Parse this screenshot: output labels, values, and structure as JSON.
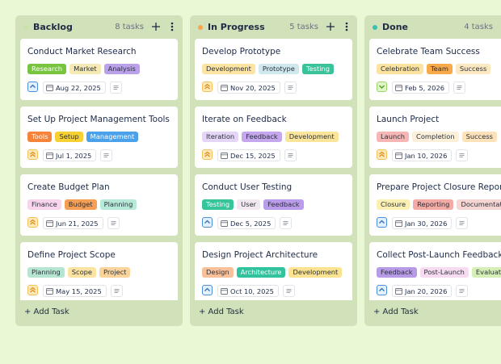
{
  "columns": [
    {
      "title": "Backlog",
      "count": "8 tasks",
      "dot": "#c9e3a8",
      "cards": [
        {
          "title": "Conduct Market Research",
          "tags": [
            {
              "label": "Research",
              "color": "#77c43e"
            },
            {
              "label": "Market",
              "color": "#f6eab4"
            },
            {
              "label": "Analysis",
              "color": "#bba0ea"
            }
          ],
          "date": "Aug 22, 2025"
        },
        {
          "title": "Set Up Project Management Tools",
          "tags": [
            {
              "label": "Tools",
              "color": "#f5843a"
            },
            {
              "label": "Setup",
              "color": "#f7d034"
            },
            {
              "label": "Management",
              "color": "#4ba2ea"
            }
          ],
          "date": "Jul 1, 2025"
        },
        {
          "title": "Create Budget Plan",
          "tags": [
            {
              "label": "Finance",
              "color": "#f8d5ec"
            },
            {
              "label": "Budget",
              "color": "#f59f55"
            },
            {
              "label": "Planning",
              "color": "#b6ead7"
            }
          ],
          "date": "Jun 21, 2025"
        },
        {
          "title": "Define Project Scope",
          "tags": [
            {
              "label": "Planning",
              "color": "#b6e6d2"
            },
            {
              "label": "Scope",
              "color": "#fbe3a2"
            },
            {
              "label": "Project",
              "color": "#fbd49b"
            }
          ],
          "date": "May 15, 2025"
        }
      ]
    },
    {
      "title": "In Progress",
      "count": "5 tasks",
      "dot": "#f5a54a",
      "cards": [
        {
          "title": "Develop Prototype",
          "tags": [
            {
              "label": "Development",
              "color": "#fde4a2"
            },
            {
              "label": "Prototype",
              "color": "#cfe9ef"
            },
            {
              "label": "Testing",
              "color": "#3ac39a"
            }
          ],
          "date": "Nov 20, 2025"
        },
        {
          "title": "Iterate on Feedback",
          "tags": [
            {
              "label": "Iteration",
              "color": "#e5d5f7"
            },
            {
              "label": "Feedback",
              "color": "#c4a7ec"
            },
            {
              "label": "Development",
              "color": "#fbe59b"
            }
          ],
          "date": "Dec 15, 2025"
        },
        {
          "title": "Conduct User Testing",
          "tags": [
            {
              "label": "Testing",
              "color": "#36c49b"
            },
            {
              "label": "User",
              "color": "#f1e9ef"
            },
            {
              "label": "Feedback",
              "color": "#bb9cea"
            }
          ],
          "date": "Dec 5, 2025"
        },
        {
          "title": "Design Project Architecture",
          "tags": [
            {
              "label": "Design",
              "color": "#f9c199"
            },
            {
              "label": "Architecture",
              "color": "#31c49c"
            },
            {
              "label": "Development",
              "color": "#fbe391"
            }
          ],
          "date": "Oct 10, 2025"
        }
      ]
    },
    {
      "title": "Done",
      "count": "4 tasks",
      "dot": "#3cbfb0",
      "cards": [
        {
          "title": "Celebrate Team Success",
          "tags": [
            {
              "label": "Celebration",
              "color": "#fce4a0"
            },
            {
              "label": "Team",
              "color": "#f8aa4b"
            },
            {
              "label": "Success",
              "color": "#fde9c1"
            }
          ],
          "date": "Feb 5, 2026"
        },
        {
          "title": "Launch Project",
          "tags": [
            {
              "label": "Launch",
              "color": "#f6b6b4"
            },
            {
              "label": "Completion",
              "color": "#fcf0da"
            },
            {
              "label": "Success",
              "color": "#fde2b9"
            }
          ],
          "date": "Jan 10, 2026"
        },
        {
          "title": "Prepare Project Closure Report",
          "tags": [
            {
              "label": "Closure",
              "color": "#fcefb2"
            },
            {
              "label": "Reporting",
              "color": "#f3aba6"
            },
            {
              "label": "Documentation",
              "color": "#f5d6d2"
            }
          ],
          "date": "Jan 30, 2026"
        },
        {
          "title": "Collect Post-Launch Feedback",
          "tags": [
            {
              "label": "Feedback",
              "color": "#b89be6"
            },
            {
              "label": "Post-Launch",
              "color": "#f7dbf0"
            },
            {
              "label": "Evaluation",
              "color": "#d6efb7"
            }
          ],
          "date": "Jan 20, 2026"
        }
      ]
    }
  ],
  "add_task": "+ Add Task"
}
